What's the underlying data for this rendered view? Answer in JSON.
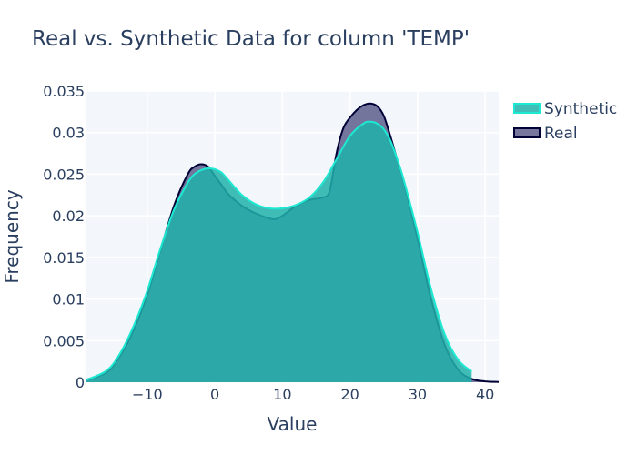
{
  "chart_data": {
    "type": "area",
    "title": "Real vs. Synthetic Data for column 'TEMP'",
    "xlabel": "Value",
    "ylabel": "Frequency",
    "xlim": [
      -19,
      42
    ],
    "ylim": [
      0,
      0.035
    ],
    "x_ticks": [
      -10,
      0,
      10,
      20,
      30,
      40
    ],
    "x_tick_labels": [
      "−10",
      "0",
      "10",
      "20",
      "30",
      "40"
    ],
    "y_ticks": [
      0,
      0.005,
      0.01,
      0.015,
      0.02,
      0.025,
      0.03,
      0.035
    ],
    "y_tick_labels": [
      "0",
      "0.005",
      "0.01",
      "0.015",
      "0.02",
      "0.025",
      "0.03",
      "0.035"
    ],
    "grid": true,
    "legend_position": "top-right",
    "series": [
      {
        "name": "Real",
        "line_color": "#000036",
        "fill_color": "#4a4a7d",
        "fill_opacity": 0.75,
        "x": [
          -19,
          -16,
          -14,
          -12,
          -10,
          -8,
          -6,
          -4,
          -3,
          -2,
          -1,
          0,
          1,
          2,
          4,
          6,
          8,
          9,
          10,
          11,
          12,
          14,
          16,
          17,
          18,
          19,
          20,
          21,
          22,
          23,
          24,
          25,
          26,
          27,
          28,
          30,
          32,
          34,
          36,
          38,
          40,
          42
        ],
        "y": [
          0.0003,
          0.0012,
          0.0032,
          0.0063,
          0.0105,
          0.016,
          0.0213,
          0.025,
          0.0259,
          0.0262,
          0.0259,
          0.0248,
          0.0237,
          0.0226,
          0.0212,
          0.0203,
          0.0197,
          0.0196,
          0.02,
          0.0206,
          0.0212,
          0.0219,
          0.0222,
          0.023,
          0.0275,
          0.0305,
          0.0318,
          0.0327,
          0.0333,
          0.0335,
          0.0332,
          0.032,
          0.0295,
          0.0267,
          0.024,
          0.0172,
          0.01,
          0.0045,
          0.0015,
          0.0004,
          0.0001,
          3e-05
        ]
      },
      {
        "name": "Synthetic",
        "line_color": "#1de9d2",
        "fill_color": "#20b2aa",
        "fill_opacity": 0.85,
        "x": [
          -19,
          -16,
          -14,
          -12,
          -10,
          -8,
          -6,
          -4,
          -3,
          -2,
          -1,
          0,
          1,
          2,
          4,
          6,
          8,
          10,
          12,
          14,
          16,
          18,
          20,
          22,
          23,
          24,
          25,
          26,
          27,
          28,
          30,
          32,
          34,
          36,
          38
        ],
        "y": [
          0.0003,
          0.0014,
          0.0035,
          0.0068,
          0.011,
          0.0162,
          0.0208,
          0.024,
          0.025,
          0.0255,
          0.0257,
          0.0256,
          0.0252,
          0.0243,
          0.0225,
          0.0214,
          0.0209,
          0.0209,
          0.0213,
          0.0222,
          0.024,
          0.0268,
          0.0296,
          0.0311,
          0.0313,
          0.0311,
          0.0304,
          0.029,
          0.0268,
          0.0242,
          0.018,
          0.0112,
          0.0058,
          0.0027,
          0.0013
        ]
      }
    ],
    "legend_order": [
      "Synthetic",
      "Real"
    ]
  }
}
